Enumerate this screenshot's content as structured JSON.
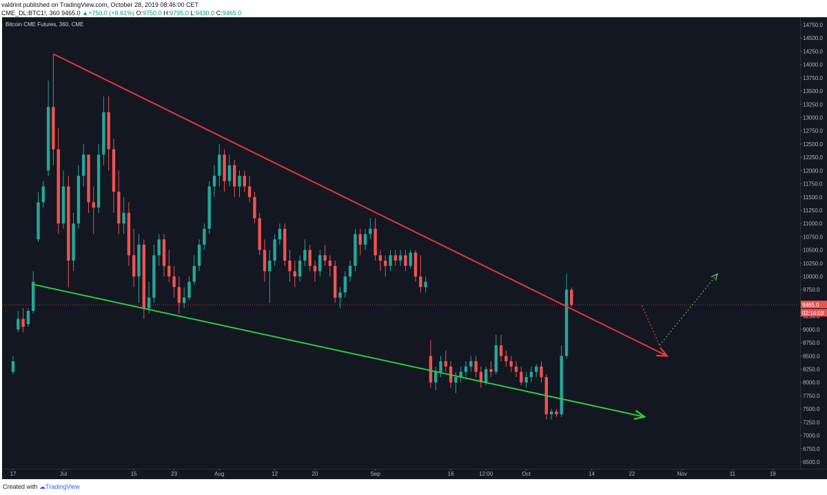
{
  "header": {
    "author": "valdrint",
    "published": "published on TradingView.com, October 28, 2019 08:46:00 CET",
    "symbol": "CME_DL:BTC1!, 360",
    "last": "9465.0",
    "change_arrow": "▲",
    "change": "+750.0 (+8.61%)",
    "o_label": "O:",
    "o_value": "9750.0",
    "h_label": "H:",
    "h_value": "9795.0",
    "l_label": "L:",
    "l_value": "9430.0",
    "c_label": "C:",
    "c_value": "9465.0"
  },
  "chart_title": "Bitcoin CME Futures, 360, CME",
  "footer": {
    "created": "Created with",
    "brand": "TradingView"
  },
  "colors": {
    "up": "#26a69a",
    "down": "#ef5350",
    "background": "#131722",
    "resistance": "#e53935",
    "support": "#2ecc40"
  },
  "chart_data": {
    "type": "candlestick",
    "title": "Bitcoin CME Futures, 360, CME",
    "x_unit": "trading day index (0 = Jun 17, 2019)",
    "ylim": [
      6500,
      14750
    ],
    "y_ticks": [
      "14750.0",
      "14500.0",
      "14250.0",
      "14000.0",
      "13750.0",
      "13500.0",
      "13250.0",
      "13000.0",
      "12750.0",
      "12500.0",
      "12250.0",
      "12000.0",
      "11750.0",
      "11500.0",
      "11250.0",
      "11000.0",
      "10750.0",
      "10500.0",
      "10250.0",
      "10000.0",
      "9750.0",
      "9500.0",
      "9250.0",
      "9000.0",
      "8750.0",
      "8500.0",
      "8250.0",
      "8000.0",
      "7750.0",
      "7500.0",
      "7250.0",
      "7000.0",
      "6750.0",
      "6500.0"
    ],
    "x_ticks": [
      {
        "label": "17",
        "day": 0
      },
      {
        "label": "Jul",
        "day": 10
      },
      {
        "label": "15",
        "day": 24
      },
      {
        "label": "23",
        "day": 32
      },
      {
        "label": "Aug",
        "day": 41
      },
      {
        "label": "12",
        "day": 52
      },
      {
        "label": "20",
        "day": 60
      },
      {
        "label": "Sep",
        "day": 72
      },
      {
        "label": "16",
        "day": 87
      },
      {
        "label": "12:00",
        "day": 94
      },
      {
        "label": "Oct",
        "day": 102
      },
      {
        "label": "14",
        "day": 115
      },
      {
        "label": "22",
        "day": 123
      },
      {
        "label": "Nov",
        "day": 133
      },
      {
        "label": "11",
        "day": 143
      },
      {
        "label": "19",
        "day": 151
      }
    ],
    "last_price": {
      "value": 9465,
      "label": "9465.0",
      "countdown": "02:14:03"
    },
    "trendlines": [
      {
        "name": "resistance",
        "from": {
          "day": 8.0,
          "price": 14200
        },
        "to": {
          "day": 130.0,
          "price": 8500
        }
      },
      {
        "name": "support",
        "from": {
          "day": 4.0,
          "price": 9850
        },
        "to": {
          "day": 125.5,
          "price": 7350
        }
      }
    ],
    "projection": [
      {
        "from": {
          "day": 125.0,
          "price": 9450
        },
        "to": {
          "day": 128.5,
          "price": 8700
        }
      },
      {
        "from": {
          "day": 128.5,
          "price": 8700
        },
        "to": {
          "day": 140.0,
          "price": 10050
        }
      }
    ],
    "candles": [
      {
        "d": 0,
        "o": 8200,
        "h": 8500,
        "l": 8150,
        "c": 8400
      },
      {
        "d": 1,
        "o": 9000,
        "h": 9350,
        "l": 8950,
        "c": 9200
      },
      {
        "d": 2,
        "o": 9200,
        "h": 9400,
        "l": 8950,
        "c": 9050
      },
      {
        "d": 3,
        "o": 9100,
        "h": 9400,
        "l": 9050,
        "c": 9350
      },
      {
        "d": 4,
        "o": 9350,
        "h": 10100,
        "l": 9300,
        "c": 9900
      },
      {
        "d": 5,
        "o": 10700,
        "h": 11600,
        "l": 10650,
        "c": 11400
      },
      {
        "d": 6,
        "o": 11400,
        "h": 11800,
        "l": 11300,
        "c": 11700
      },
      {
        "d": 7,
        "o": 12000,
        "h": 13700,
        "l": 11900,
        "c": 13200
      },
      {
        "d": 8,
        "o": 13200,
        "h": 14200,
        "l": 12100,
        "c": 12400
      },
      {
        "d": 9,
        "o": 12400,
        "h": 12800,
        "l": 10800,
        "c": 11000
      },
      {
        "d": 10,
        "o": 11000,
        "h": 12000,
        "l": 10900,
        "c": 11700
      },
      {
        "d": 11,
        "o": 11700,
        "h": 11900,
        "l": 9800,
        "c": 10300
      },
      {
        "d": 12,
        "o": 10300,
        "h": 11200,
        "l": 10100,
        "c": 11000
      },
      {
        "d": 13,
        "o": 11000,
        "h": 12100,
        "l": 10900,
        "c": 11900
      },
      {
        "d": 14,
        "o": 11900,
        "h": 12500,
        "l": 11700,
        "c": 12300
      },
      {
        "d": 15,
        "o": 12300,
        "h": 12300,
        "l": 11200,
        "c": 11400
      },
      {
        "d": 16,
        "o": 11400,
        "h": 11700,
        "l": 10800,
        "c": 11300
      },
      {
        "d": 17,
        "o": 11300,
        "h": 12500,
        "l": 11200,
        "c": 12300
      },
      {
        "d": 18,
        "o": 12300,
        "h": 13400,
        "l": 12100,
        "c": 13100
      },
      {
        "d": 19,
        "o": 13100,
        "h": 13400,
        "l": 12000,
        "c": 12400
      },
      {
        "d": 20,
        "o": 12400,
        "h": 12600,
        "l": 11200,
        "c": 11600
      },
      {
        "d": 21,
        "o": 11600,
        "h": 12000,
        "l": 10800,
        "c": 11000
      },
      {
        "d": 22,
        "o": 11000,
        "h": 11500,
        "l": 10800,
        "c": 11200
      },
      {
        "d": 23,
        "o": 11200,
        "h": 11400,
        "l": 10200,
        "c": 10400
      },
      {
        "d": 24,
        "o": 10400,
        "h": 10900,
        "l": 9800,
        "c": 10000
      },
      {
        "d": 25,
        "o": 10000,
        "h": 10800,
        "l": 9500,
        "c": 10600
      },
      {
        "d": 26,
        "o": 10600,
        "h": 10700,
        "l": 9200,
        "c": 9400
      },
      {
        "d": 27,
        "o": 9400,
        "h": 9900,
        "l": 9300,
        "c": 9600
      },
      {
        "d": 28,
        "o": 9600,
        "h": 10600,
        "l": 9500,
        "c": 10400
      },
      {
        "d": 29,
        "o": 10400,
        "h": 10800,
        "l": 10200,
        "c": 10700
      },
      {
        "d": 30,
        "o": 10700,
        "h": 10800,
        "l": 10000,
        "c": 10200
      },
      {
        "d": 31,
        "o": 10200,
        "h": 10500,
        "l": 9900,
        "c": 10000
      },
      {
        "d": 32,
        "o": 10000,
        "h": 10200,
        "l": 9600,
        "c": 9800
      },
      {
        "d": 33,
        "o": 9800,
        "h": 10000,
        "l": 9300,
        "c": 9500
      },
      {
        "d": 34,
        "o": 9500,
        "h": 9800,
        "l": 9400,
        "c": 9600
      },
      {
        "d": 35,
        "o": 9600,
        "h": 10000,
        "l": 9550,
        "c": 9900
      },
      {
        "d": 36,
        "o": 9900,
        "h": 10400,
        "l": 9850,
        "c": 10200
      },
      {
        "d": 37,
        "o": 10200,
        "h": 10700,
        "l": 10100,
        "c": 10600
      },
      {
        "d": 38,
        "o": 10600,
        "h": 11000,
        "l": 10500,
        "c": 10900
      },
      {
        "d": 39,
        "o": 10900,
        "h": 11800,
        "l": 10800,
        "c": 11700
      },
      {
        "d": 40,
        "o": 11700,
        "h": 12100,
        "l": 11500,
        "c": 11900
      },
      {
        "d": 41,
        "o": 11900,
        "h": 12500,
        "l": 11700,
        "c": 12300
      },
      {
        "d": 42,
        "o": 12300,
        "h": 12400,
        "l": 11600,
        "c": 11800
      },
      {
        "d": 43,
        "o": 11800,
        "h": 12300,
        "l": 11700,
        "c": 12100
      },
      {
        "d": 44,
        "o": 12100,
        "h": 12200,
        "l": 11500,
        "c": 11700
      },
      {
        "d": 45,
        "o": 11700,
        "h": 12000,
        "l": 11500,
        "c": 11900
      },
      {
        "d": 46,
        "o": 11900,
        "h": 12000,
        "l": 11600,
        "c": 11700
      },
      {
        "d": 47,
        "o": 11700,
        "h": 11900,
        "l": 11400,
        "c": 11500
      },
      {
        "d": 48,
        "o": 11500,
        "h": 11600,
        "l": 11000,
        "c": 11100
      },
      {
        "d": 49,
        "o": 11100,
        "h": 11200,
        "l": 10400,
        "c": 10500
      },
      {
        "d": 50,
        "o": 10500,
        "h": 10700,
        "l": 9900,
        "c": 10100
      },
      {
        "d": 51,
        "o": 10100,
        "h": 10500,
        "l": 9500,
        "c": 10300
      },
      {
        "d": 52,
        "o": 10300,
        "h": 10800,
        "l": 10200,
        "c": 10700
      },
      {
        "d": 53,
        "o": 10700,
        "h": 11000,
        "l": 10600,
        "c": 10900
      },
      {
        "d": 54,
        "o": 10900,
        "h": 11000,
        "l": 10200,
        "c": 10300
      },
      {
        "d": 55,
        "o": 10300,
        "h": 10500,
        "l": 9900,
        "c": 10100
      },
      {
        "d": 56,
        "o": 10100,
        "h": 10300,
        "l": 9800,
        "c": 10000
      },
      {
        "d": 57,
        "o": 10000,
        "h": 10400,
        "l": 9900,
        "c": 10300
      },
      {
        "d": 58,
        "o": 10300,
        "h": 10700,
        "l": 10200,
        "c": 10500
      },
      {
        "d": 59,
        "o": 10500,
        "h": 10600,
        "l": 10100,
        "c": 10200
      },
      {
        "d": 60,
        "o": 10200,
        "h": 10300,
        "l": 9900,
        "c": 10100
      },
      {
        "d": 61,
        "o": 10100,
        "h": 10500,
        "l": 10000,
        "c": 10400
      },
      {
        "d": 62,
        "o": 10400,
        "h": 10600,
        "l": 10200,
        "c": 10300
      },
      {
        "d": 63,
        "o": 10300,
        "h": 10400,
        "l": 10000,
        "c": 10200
      },
      {
        "d": 64,
        "o": 10200,
        "h": 10300,
        "l": 9500,
        "c": 9600
      },
      {
        "d": 65,
        "o": 9600,
        "h": 9800,
        "l": 9400,
        "c": 9700
      },
      {
        "d": 66,
        "o": 9700,
        "h": 10100,
        "l": 9600,
        "c": 10000
      },
      {
        "d": 67,
        "o": 10000,
        "h": 10300,
        "l": 9900,
        "c": 10200
      },
      {
        "d": 68,
        "o": 10200,
        "h": 10900,
        "l": 10100,
        "c": 10800
      },
      {
        "d": 69,
        "o": 10800,
        "h": 10900,
        "l": 10400,
        "c": 10600
      },
      {
        "d": 70,
        "o": 10600,
        "h": 10900,
        "l": 10500,
        "c": 10800
      },
      {
        "d": 71,
        "o": 10800,
        "h": 11100,
        "l": 10700,
        "c": 10900
      },
      {
        "d": 72,
        "o": 10900,
        "h": 11100,
        "l": 10300,
        "c": 10400
      },
      {
        "d": 73,
        "o": 10400,
        "h": 10500,
        "l": 10100,
        "c": 10300
      },
      {
        "d": 74,
        "o": 10300,
        "h": 10400,
        "l": 10000,
        "c": 10200
      },
      {
        "d": 75,
        "o": 10200,
        "h": 10500,
        "l": 10100,
        "c": 10400
      },
      {
        "d": 76,
        "o": 10400,
        "h": 10500,
        "l": 10200,
        "c": 10300
      },
      {
        "d": 77,
        "o": 10300,
        "h": 10500,
        "l": 10200,
        "c": 10400
      },
      {
        "d": 78,
        "o": 10400,
        "h": 10500,
        "l": 10100,
        "c": 10200
      },
      {
        "d": 79,
        "o": 10200,
        "h": 10500,
        "l": 10150,
        "c": 10450
      },
      {
        "d": 80,
        "o": 10450,
        "h": 10500,
        "l": 9900,
        "c": 10000
      },
      {
        "d": 81,
        "o": 10000,
        "h": 10400,
        "l": 9700,
        "c": 9800
      },
      {
        "d": 82,
        "o": 9800,
        "h": 10000,
        "l": 9700,
        "c": 9900
      },
      {
        "d": 83,
        "o": 8500,
        "h": 8800,
        "l": 7900,
        "c": 8000
      },
      {
        "d": 84,
        "o": 8000,
        "h": 8300,
        "l": 7850,
        "c": 8200
      },
      {
        "d": 85,
        "o": 8200,
        "h": 8500,
        "l": 8100,
        "c": 8400
      },
      {
        "d": 86,
        "o": 8400,
        "h": 8600,
        "l": 8200,
        "c": 8300
      },
      {
        "d": 87,
        "o": 8300,
        "h": 8400,
        "l": 7900,
        "c": 8000
      },
      {
        "d": 88,
        "o": 8000,
        "h": 8200,
        "l": 7800,
        "c": 8100
      },
      {
        "d": 89,
        "o": 8100,
        "h": 8300,
        "l": 8000,
        "c": 8200
      },
      {
        "d": 90,
        "o": 8200,
        "h": 8400,
        "l": 8100,
        "c": 8300
      },
      {
        "d": 91,
        "o": 8300,
        "h": 8500,
        "l": 8200,
        "c": 8400
      },
      {
        "d": 92,
        "o": 8400,
        "h": 8500,
        "l": 8100,
        "c": 8200
      },
      {
        "d": 93,
        "o": 8200,
        "h": 8300,
        "l": 7900,
        "c": 8000
      },
      {
        "d": 94,
        "o": 8000,
        "h": 8300,
        "l": 7950,
        "c": 8250
      },
      {
        "d": 95,
        "o": 8250,
        "h": 8400,
        "l": 8100,
        "c": 8200
      },
      {
        "d": 96,
        "o": 8200,
        "h": 8900,
        "l": 8150,
        "c": 8700
      },
      {
        "d": 97,
        "o": 8700,
        "h": 8900,
        "l": 8400,
        "c": 8500
      },
      {
        "d": 98,
        "o": 8500,
        "h": 8600,
        "l": 8300,
        "c": 8400
      },
      {
        "d": 99,
        "o": 8400,
        "h": 8500,
        "l": 8200,
        "c": 8300
      },
      {
        "d": 100,
        "o": 8300,
        "h": 8400,
        "l": 8100,
        "c": 8200
      },
      {
        "d": 101,
        "o": 8200,
        "h": 8300,
        "l": 7950,
        "c": 8000
      },
      {
        "d": 102,
        "o": 8000,
        "h": 8200,
        "l": 7900,
        "c": 8100
      },
      {
        "d": 103,
        "o": 8100,
        "h": 8300,
        "l": 8000,
        "c": 8200
      },
      {
        "d": 104,
        "o": 8200,
        "h": 8350,
        "l": 8100,
        "c": 8300
      },
      {
        "d": 105,
        "o": 8300,
        "h": 8400,
        "l": 8000,
        "c": 8100
      },
      {
        "d": 106,
        "o": 8100,
        "h": 8150,
        "l": 7300,
        "c": 7400
      },
      {
        "d": 107,
        "o": 7400,
        "h": 7500,
        "l": 7300,
        "c": 7450
      },
      {
        "d": 108,
        "o": 7450,
        "h": 7500,
        "l": 7350,
        "c": 7400
      },
      {
        "d": 109,
        "o": 7400,
        "h": 8700,
        "l": 7350,
        "c": 8500
      },
      {
        "d": 110,
        "o": 8500,
        "h": 10050,
        "l": 8450,
        "c": 9750
      },
      {
        "d": 111,
        "o": 9750,
        "h": 9795,
        "l": 9430,
        "c": 9465
      }
    ]
  }
}
